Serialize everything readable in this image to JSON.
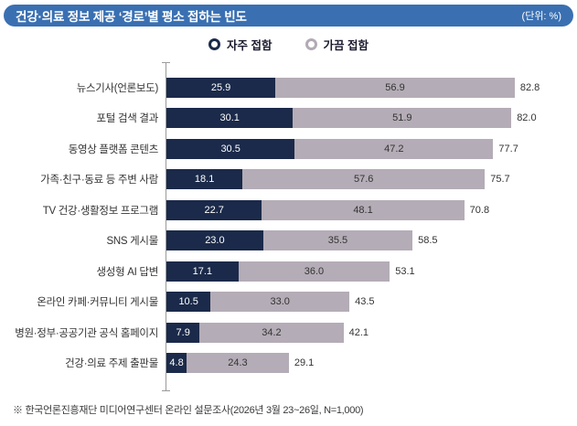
{
  "header": {
    "title": "건강·의료 정보 제공 ‘경로’별 평소 접하는 빈도",
    "unit": "(단위: %)"
  },
  "legend": {
    "items": [
      {
        "label": "자주 접함",
        "color": "#1b2a4a"
      },
      {
        "label": "가끔 접함",
        "color": "#b4acb6"
      }
    ]
  },
  "chart_data": {
    "type": "bar",
    "orientation": "horizontal",
    "stacked": true,
    "title": "건강·의료 정보 제공 ‘경로’별 평소 접하는 빈도",
    "unit": "%",
    "xlim": [
      0,
      100
    ],
    "grid": false,
    "legend_position": "top-center",
    "categories": [
      "뉴스기사(언론보도)",
      "포털 검색 결과",
      "동영상 플랫폼 콘텐츠",
      "가족·친구·동료 등 주변 사람",
      "TV 건강·생활정보 프로그램",
      "SNS 게시물",
      "생성형 AI 답변",
      "온라인 카페·커뮤니티 게시물",
      "병원·정부·공공기관 공식 홈페이지",
      "건강·의료 주제 출판물"
    ],
    "series": [
      {
        "name": "자주 접함",
        "color": "#1b2a4a",
        "values": [
          25.9,
          30.1,
          30.5,
          18.1,
          22.7,
          23.0,
          17.1,
          10.5,
          7.9,
          4.8
        ]
      },
      {
        "name": "가끔 접함",
        "color": "#b4acb6",
        "values": [
          56.9,
          51.9,
          47.2,
          57.6,
          48.1,
          35.5,
          36.0,
          33.0,
          34.2,
          24.3
        ]
      }
    ],
    "totals": [
      82.8,
      82.0,
      77.7,
      75.7,
      70.8,
      58.5,
      53.1,
      43.5,
      42.1,
      29.1
    ]
  },
  "footnote": "※ 한국언론진흥재단 미디어연구센터 온라인 설문조사(2026년 3월 23~26일, N=1,000)"
}
